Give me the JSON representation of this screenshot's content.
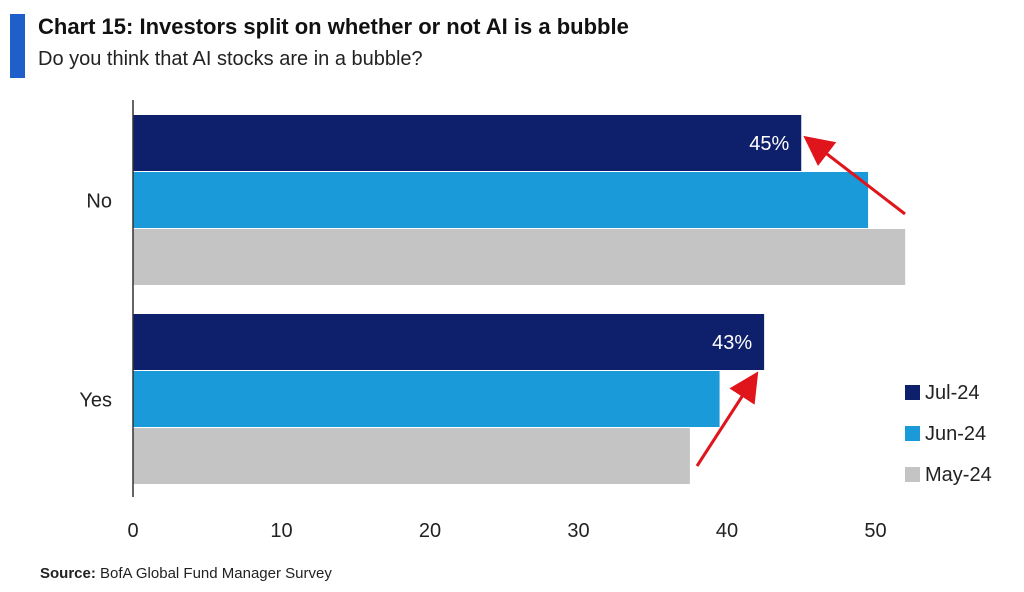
{
  "header": {
    "title": "Chart 15: Investors split on whether or not AI is a bubble",
    "subtitle": "Do you think that AI stocks are in a bubble?"
  },
  "footer": {
    "source_label": "Source:",
    "source_text": "BofA Global Fund Manager Survey"
  },
  "colors": {
    "accent": "#1f5fc9",
    "arrow": "#e0151b",
    "axis": "#333333"
  },
  "chart_data": {
    "type": "bar",
    "orientation": "horizontal",
    "title": "Chart 15: Investors split on whether or not AI is a bubble",
    "subtitle": "Do you think that AI stocks are in a bubble?",
    "categories": [
      "No",
      "Yes"
    ],
    "series": [
      {
        "name": "Jul-24",
        "color": "#0e1f6b",
        "values": [
          45,
          42.5
        ]
      },
      {
        "name": "Jun-24",
        "color": "#1a9ad9",
        "values": [
          49.5,
          39.5
        ]
      },
      {
        "name": "May-24",
        "color": "#c4c4c4",
        "values": [
          52,
          37.5
        ]
      }
    ],
    "data_labels": [
      {
        "category": "No",
        "series": "Jul-24",
        "text": "45%"
      },
      {
        "category": "Yes",
        "series": "Jul-24",
        "text": "43%"
      }
    ],
    "xlim": [
      0,
      52
    ],
    "xticks": [
      0,
      10,
      20,
      30,
      40,
      50
    ],
    "legend_position": "bottom-right",
    "grid": false,
    "annotations": [
      {
        "type": "arrow",
        "category": "No",
        "direction": "up-left",
        "color": "#e0151b"
      },
      {
        "type": "arrow",
        "category": "Yes",
        "direction": "up-right",
        "color": "#e0151b"
      }
    ]
  }
}
